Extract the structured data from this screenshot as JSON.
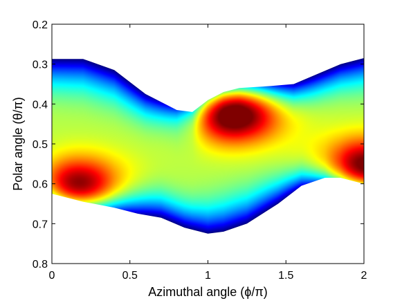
{
  "chart_data": {
    "type": "heatmap",
    "title": "",
    "xlabel": "Azimuthal angle (ϕ/π)",
    "ylabel": "Polar angle (θ/π)",
    "xlim": [
      0,
      2
    ],
    "ylim": [
      0.2,
      0.8
    ],
    "y_axis_direction": "reversed",
    "x_ticks": [
      "0",
      "0.5",
      "1",
      "1.5",
      "2"
    ],
    "y_ticks": [
      "0.2",
      "0.3",
      "0.4",
      "0.5",
      "0.6",
      "0.7",
      "0.8"
    ],
    "colormap": "jet",
    "grid": false,
    "legend": "none",
    "colorbar": "none",
    "region": {
      "upper_boundary": {
        "phi": [
          0,
          0.2,
          0.4,
          0.6,
          0.8,
          0.9,
          1.0,
          1.1,
          1.2,
          1.4,
          1.55,
          1.7,
          1.85,
          2.0
        ],
        "theta": [
          0.287,
          0.287,
          0.315,
          0.375,
          0.415,
          0.42,
          0.39,
          0.37,
          0.36,
          0.355,
          0.35,
          0.325,
          0.3,
          0.285
        ]
      },
      "lower_boundary": {
        "phi": [
          0,
          0.2,
          0.4,
          0.55,
          0.7,
          0.85,
          1.0,
          1.1,
          1.25,
          1.45,
          1.6,
          1.75,
          1.85,
          2.0
        ],
        "theta": [
          0.625,
          0.645,
          0.66,
          0.675,
          0.685,
          0.71,
          0.725,
          0.72,
          0.7,
          0.65,
          0.605,
          0.585,
          0.585,
          0.6
        ]
      }
    },
    "field_features": [
      {
        "phi": 0.15,
        "theta": 0.615,
        "level": 1.0
      },
      {
        "phi": 1.15,
        "theta": 0.415,
        "level": 1.0
      },
      {
        "phi": 2.0,
        "theta": 0.57,
        "level": 1.0
      },
      {
        "phi": 0.0,
        "theta": 0.3,
        "level": 0.0
      },
      {
        "phi": 1.0,
        "theta": 0.7,
        "level": 0.0
      }
    ]
  }
}
